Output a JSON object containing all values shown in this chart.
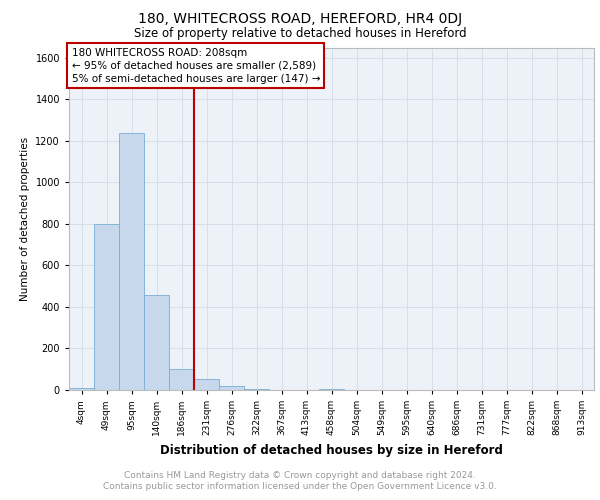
{
  "title": "180, WHITECROSS ROAD, HEREFORD, HR4 0DJ",
  "subtitle": "Size of property relative to detached houses in Hereford",
  "xlabel": "Distribution of detached houses by size in Hereford",
  "ylabel": "Number of detached properties",
  "bar_color": "#c8d8ec",
  "bar_edge_color": "#7aadd4",
  "annotation_box_color": "#bb0000",
  "vline_color": "#bb0000",
  "annotation_lines": [
    "180 WHITECROSS ROAD: 208sqm",
    "← 95% of detached houses are smaller (2,589)",
    "5% of semi-detached houses are larger (147) →"
  ],
  "categories": [
    "4sqm",
    "49sqm",
    "95sqm",
    "140sqm",
    "186sqm",
    "231sqm",
    "276sqm",
    "322sqm",
    "367sqm",
    "413sqm",
    "458sqm",
    "504sqm",
    "549sqm",
    "595sqm",
    "640sqm",
    "686sqm",
    "731sqm",
    "777sqm",
    "822sqm",
    "868sqm",
    "913sqm"
  ],
  "values": [
    10,
    800,
    1240,
    460,
    100,
    55,
    20,
    5,
    0,
    0,
    5,
    0,
    0,
    0,
    0,
    0,
    0,
    0,
    0,
    0,
    0
  ],
  "ylim": [
    0,
    1650
  ],
  "yticks": [
    0,
    200,
    400,
    600,
    800,
    1000,
    1200,
    1400,
    1600
  ],
  "vline_x_index": 4.5,
  "footer_lines": [
    "Contains HM Land Registry data © Crown copyright and database right 2024.",
    "Contains public sector information licensed under the Open Government Licence v3.0."
  ],
  "footer_color": "#999999",
  "grid_color": "#d8dde8",
  "bg_color": "#edf1f8"
}
